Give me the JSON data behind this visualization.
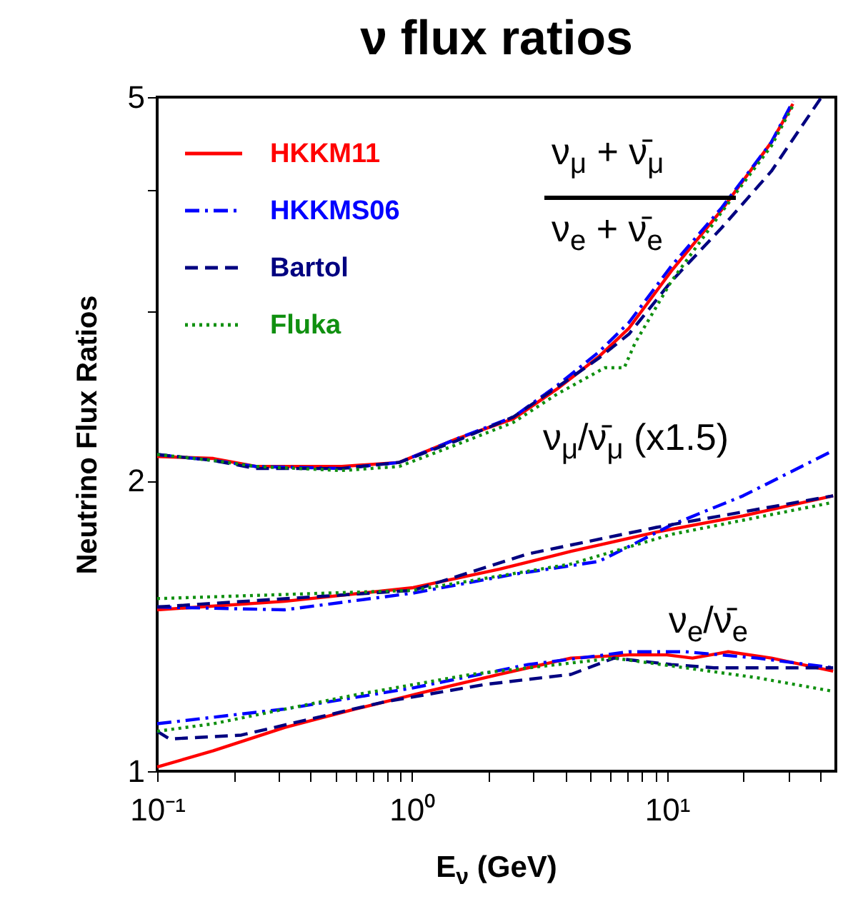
{
  "chart_data": {
    "type": "line",
    "title": "ν flux ratios",
    "xlabel": "E$_{ν}$ (GeV)",
    "ylabel": "Neutrino Flux Ratios",
    "log": "xy",
    "grid": false,
    "legend": "top left",
    "xlim": [
      0.1,
      46
    ],
    "ylim": [
      1,
      5
    ],
    "xticks": [
      {
        "value": 0.1,
        "label": "10⁻¹"
      },
      {
        "value": 0.2,
        "label": null
      },
      {
        "value": 0.3,
        "label": null
      },
      {
        "value": 0.4,
        "label": null
      },
      {
        "value": 0.5,
        "label": null
      },
      {
        "value": 0.6,
        "label": null
      },
      {
        "value": 0.7,
        "label": null
      },
      {
        "value": 0.8,
        "label": null
      },
      {
        "value": 0.9,
        "label": null
      },
      {
        "value": 1,
        "label": "10⁰"
      },
      {
        "value": 2,
        "label": null
      },
      {
        "value": 3,
        "label": null
      },
      {
        "value": 4,
        "label": null
      },
      {
        "value": 5,
        "label": null
      },
      {
        "value": 6,
        "label": null
      },
      {
        "value": 7,
        "label": null
      },
      {
        "value": 8,
        "label": null
      },
      {
        "value": 9,
        "label": null
      },
      {
        "value": 10,
        "label": "10¹"
      },
      {
        "value": 20,
        "label": null
      },
      {
        "value": 30,
        "label": null
      },
      {
        "value": 40,
        "label": null
      }
    ],
    "yticks": [
      1,
      2,
      {
        "value": 3,
        "label": null
      },
      {
        "value": 4,
        "label": null
      },
      5
    ],
    "annotations": [
      "ν$_{μ}$ + ν̄$_{μ}$",
      "ν$_{e}$ + ν̄$_{e}$",
      "ν$_{μ}$/ν̄$_{μ}$ (x1.5)",
      "ν$_{e}$/ν̄$_{e}$"
    ],
    "series": [
      {
        "name": "HKKM11",
        "color": "#ff0000",
        "line_style": "solid",
        "x": [
          0.1,
          0.166,
          0.244,
          0.53,
          0.89,
          1.49,
          2.5,
          3.7,
          5.4,
          7.1,
          10.4,
          16.4,
          25.7,
          31.2
        ],
        "values": [
          2.12,
          2.11,
          2.07,
          2.07,
          2.09,
          2.21,
          2.32,
          2.49,
          2.69,
          2.88,
          3.3,
          3.82,
          4.49,
          4.92
        ]
      },
      {
        "name": "HKKMS06",
        "color": "#0000ff",
        "line_style": "dashdot",
        "x": [
          0.1,
          0.166,
          0.244,
          0.53,
          0.89,
          1.49,
          2.5,
          3.7,
          5.4,
          7.1,
          10.4,
          16.4,
          25.7,
          31.2
        ],
        "values": [
          2.13,
          2.1,
          2.07,
          2.06,
          2.09,
          2.21,
          2.33,
          2.51,
          2.72,
          2.92,
          3.34,
          3.84,
          4.49,
          4.95
        ]
      },
      {
        "name": "Bartol",
        "color": "#000080",
        "line_style": "dashed",
        "x": [
          0.1,
          0.166,
          0.244,
          0.53,
          0.89,
          1.49,
          2.5,
          3.7,
          5.4,
          7.1,
          10.4,
          16.4,
          25.7,
          40.4
        ],
        "values": [
          2.13,
          2.1,
          2.06,
          2.06,
          2.09,
          2.2,
          2.33,
          2.5,
          2.68,
          2.84,
          3.22,
          3.66,
          4.19,
          5.0
        ]
      },
      {
        "name": "Fluka",
        "color": "#109010",
        "line_style": "dotted",
        "x": [
          0.1,
          0.166,
          0.244,
          0.53,
          0.89,
          1.49,
          2.5,
          3.7,
          5.7,
          6.8,
          7.5,
          10.4,
          16.4,
          25.7,
          31.2
        ],
        "values": [
          2.13,
          2.1,
          2.07,
          2.05,
          2.07,
          2.18,
          2.3,
          2.46,
          2.62,
          2.62,
          2.78,
          3.22,
          3.8,
          4.45,
          4.9
        ]
      },
      {
        "color": "#ff0000",
        "line_style": "solid",
        "x": [
          0.1,
          0.316,
          1.01,
          2.2,
          4.2,
          9.1,
          19.9,
          44.9
        ],
        "values": [
          1.47,
          1.5,
          1.55,
          1.62,
          1.69,
          1.77,
          1.84,
          1.93
        ]
      },
      {
        "color": "#0000ff",
        "line_style": "dashdot",
        "x": [
          0.1,
          0.316,
          1.01,
          2.5,
          5.4,
          7.1,
          10.4,
          19.9,
          44.9
        ],
        "values": [
          1.48,
          1.47,
          1.53,
          1.6,
          1.65,
          1.71,
          1.8,
          1.93,
          2.15
        ]
      },
      {
        "color": "#000080",
        "line_style": "dashed",
        "x": [
          0.1,
          1.01,
          2.85,
          9.1,
          44.9
        ],
        "values": [
          1.48,
          1.54,
          1.68,
          1.79,
          1.93
        ]
      },
      {
        "color": "#109010",
        "line_style": "dotted",
        "x": [
          0.1,
          1.01,
          4.2,
          10.4,
          44.9
        ],
        "values": [
          1.51,
          1.54,
          1.64,
          1.76,
          1.9
        ]
      },
      {
        "color": "#ff0000",
        "line_style": "solid",
        "x": [
          0.1,
          0.166,
          0.316,
          0.6,
          1.15,
          2.2,
          4.2,
          7.1,
          10,
          12.6,
          17.4,
          25.7,
          44.9
        ],
        "values": [
          1.01,
          1.05,
          1.11,
          1.16,
          1.21,
          1.26,
          1.31,
          1.32,
          1.32,
          1.31,
          1.33,
          1.31,
          1.27
        ]
      },
      {
        "color": "#0000ff",
        "line_style": "dashdot",
        "x": [
          0.1,
          0.316,
          1.01,
          2.85,
          7.1,
          11.8,
          22.6,
          44.9
        ],
        "values": [
          1.12,
          1.16,
          1.22,
          1.29,
          1.33,
          1.33,
          1.31,
          1.28
        ]
      },
      {
        "color": "#000080",
        "line_style": "dashed",
        "x": [
          0.1,
          0.112,
          0.214,
          0.384,
          0.78,
          1.93,
          4.2,
          6.2,
          10.4,
          15.3,
          44.9
        ],
        "values": [
          1.1,
          1.08,
          1.09,
          1.13,
          1.18,
          1.23,
          1.26,
          1.31,
          1.29,
          1.28,
          1.28
        ]
      },
      {
        "color": "#109010",
        "line_style": "dotted",
        "x": [
          0.1,
          0.166,
          0.6,
          1.7,
          6.2,
          11.8,
          22.6,
          44.9
        ],
        "values": [
          1.1,
          1.12,
          1.2,
          1.26,
          1.31,
          1.28,
          1.25,
          1.21
        ]
      }
    ]
  }
}
